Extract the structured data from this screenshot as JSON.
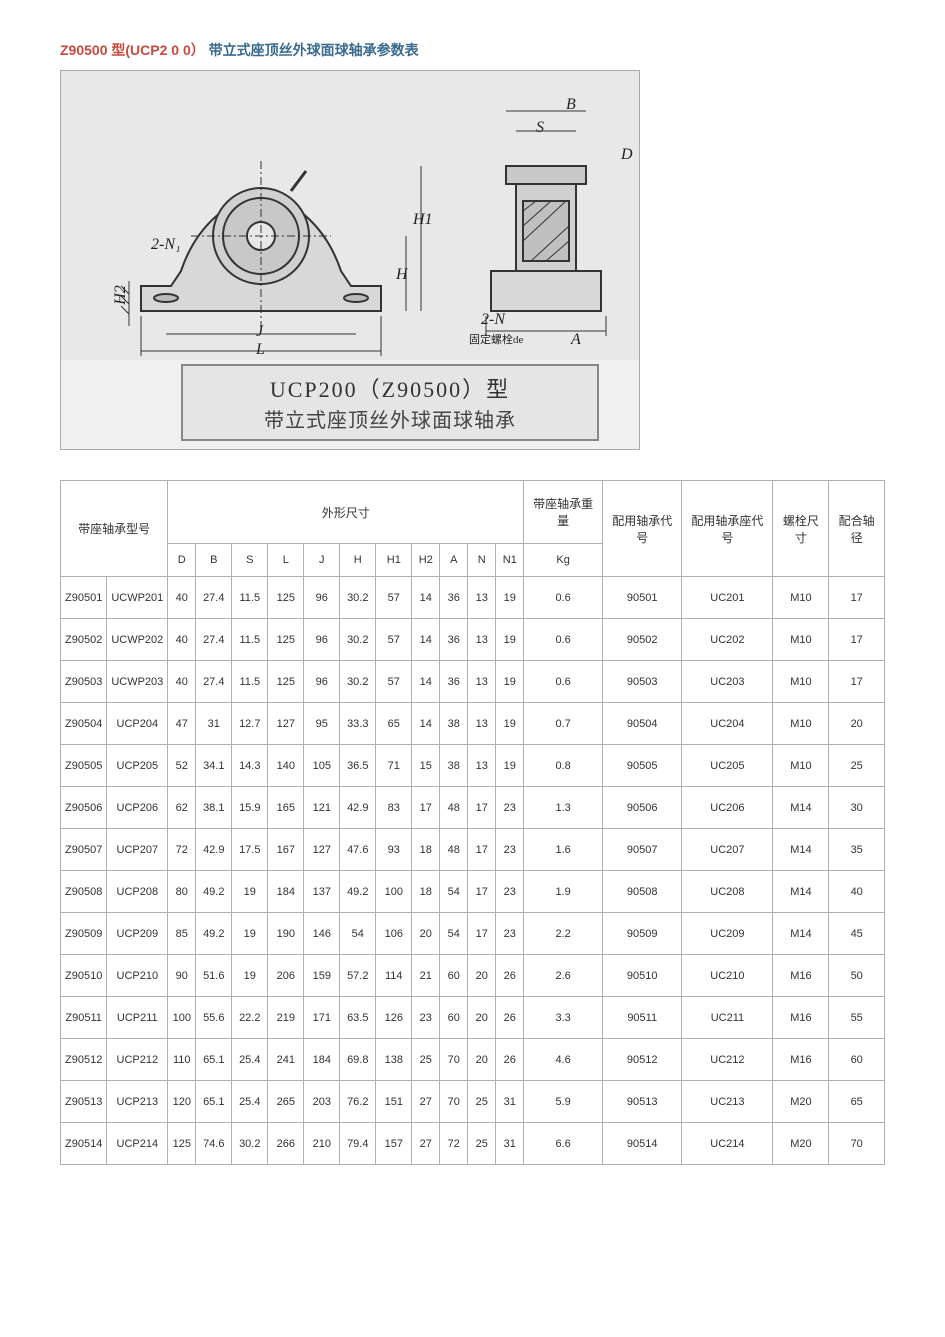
{
  "title": {
    "part1": "Z90500 型(UCP2 0 0）",
    "part2": "带立式座顶丝外球面球轴承参数表"
  },
  "diagram": {
    "caption_line1": "UCP200（Z90500）型",
    "caption_line2": "带立式座顶丝外球面球轴承",
    "labels": {
      "B": "B",
      "S": "S",
      "D": "D",
      "H": "H",
      "H1": "H1",
      "H2": "H2",
      "L": "L",
      "J": "J",
      "A": "A",
      "N": "2-N",
      "N1": "2-N₁",
      "bolt": "固定螺栓de"
    }
  },
  "table": {
    "headers": {
      "model": "带座轴承型号",
      "dimensions": "外形尺寸",
      "weight": "带座轴承重量",
      "bearing_code": "配用轴承代号",
      "housing_code": "配用轴承座代号",
      "bolt_size": "螺栓尺寸",
      "shaft_dia": "配合轴径",
      "sub": [
        "D",
        "B",
        "S",
        "L",
        "J",
        "H",
        "H1",
        "H2",
        "A",
        "N",
        "N1",
        "Kg"
      ]
    },
    "rows": [
      [
        "Z90501",
        "UCWP201",
        "40",
        "27.4",
        "11.5",
        "125",
        "96",
        "30.2",
        "57",
        "14",
        "36",
        "13",
        "19",
        "0.6",
        "90501",
        "UC201",
        "M10",
        "17"
      ],
      [
        "Z90502",
        "UCWP202",
        "40",
        "27.4",
        "11.5",
        "125",
        "96",
        "30.2",
        "57",
        "14",
        "36",
        "13",
        "19",
        "0.6",
        "90502",
        "UC202",
        "M10",
        "17"
      ],
      [
        "Z90503",
        "UCWP203",
        "40",
        "27.4",
        "11.5",
        "125",
        "96",
        "30.2",
        "57",
        "14",
        "36",
        "13",
        "19",
        "0.6",
        "90503",
        "UC203",
        "M10",
        "17"
      ],
      [
        "Z90504",
        "UCP204",
        "47",
        "31",
        "12.7",
        "127",
        "95",
        "33.3",
        "65",
        "14",
        "38",
        "13",
        "19",
        "0.7",
        "90504",
        "UC204",
        "M10",
        "20"
      ],
      [
        "Z90505",
        "UCP205",
        "52",
        "34.1",
        "14.3",
        "140",
        "105",
        "36.5",
        "71",
        "15",
        "38",
        "13",
        "19",
        "0.8",
        "90505",
        "UC205",
        "M10",
        "25"
      ],
      [
        "Z90506",
        "UCP206",
        "62",
        "38.1",
        "15.9",
        "165",
        "121",
        "42.9",
        "83",
        "17",
        "48",
        "17",
        "23",
        "1.3",
        "90506",
        "UC206",
        "M14",
        "30"
      ],
      [
        "Z90507",
        "UCP207",
        "72",
        "42.9",
        "17.5",
        "167",
        "127",
        "47.6",
        "93",
        "18",
        "48",
        "17",
        "23",
        "1.6",
        "90507",
        "UC207",
        "M14",
        "35"
      ],
      [
        "Z90508",
        "UCP208",
        "80",
        "49.2",
        "19",
        "184",
        "137",
        "49.2",
        "100",
        "18",
        "54",
        "17",
        "23",
        "1.9",
        "90508",
        "UC208",
        "M14",
        "40"
      ],
      [
        "Z90509",
        "UCP209",
        "85",
        "49.2",
        "19",
        "190",
        "146",
        "54",
        "106",
        "20",
        "54",
        "17",
        "23",
        "2.2",
        "90509",
        "UC209",
        "M14",
        "45"
      ],
      [
        "Z90510",
        "UCP210",
        "90",
        "51.6",
        "19",
        "206",
        "159",
        "57.2",
        "114",
        "21",
        "60",
        "20",
        "26",
        "2.6",
        "90510",
        "UC210",
        "M16",
        "50"
      ],
      [
        "Z90511",
        "UCP211",
        "100",
        "55.6",
        "22.2",
        "219",
        "171",
        "63.5",
        "126",
        "23",
        "60",
        "20",
        "26",
        "3.3",
        "90511",
        "UC211",
        "M16",
        "55"
      ],
      [
        "Z90512",
        "UCP212",
        "110",
        "65.1",
        "25.4",
        "241",
        "184",
        "69.8",
        "138",
        "25",
        "70",
        "20",
        "26",
        "4.6",
        "90512",
        "UC212",
        "M16",
        "60"
      ],
      [
        "Z90513",
        "UCP213",
        "120",
        "65.1",
        "25.4",
        "265",
        "203",
        "76.2",
        "151",
        "27",
        "70",
        "25",
        "31",
        "5.9",
        "90513",
        "UC213",
        "M20",
        "65"
      ],
      [
        "Z90514",
        "UCP214",
        "125",
        "74.6",
        "30.2",
        "266",
        "210",
        "79.4",
        "157",
        "27",
        "72",
        "25",
        "31",
        "6.6",
        "90514",
        "UC214",
        "M20",
        "70"
      ]
    ]
  },
  "styling": {
    "title_red_color": "#c84a3f",
    "title_blue_color": "#3b6a8f",
    "border_color": "#b0b0b0",
    "background_color": "#ffffff",
    "diagram_bg": "#e8e8e8",
    "body_font_size": 11,
    "title_font_size": 14
  }
}
